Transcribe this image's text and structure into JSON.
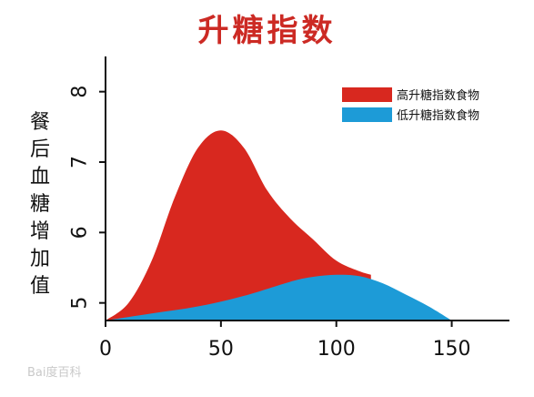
{
  "title": "升糖指数",
  "watermark": "Bai度百科",
  "chart_data": {
    "type": "area",
    "title": "升糖指数",
    "xlabel": "",
    "ylabel": "餐后血糖增加值",
    "xlim": [
      0,
      175
    ],
    "ylim": [
      4.75,
      8.5
    ],
    "x_ticks": [
      0,
      50,
      100,
      150
    ],
    "y_ticks": [
      5,
      6,
      7,
      8
    ],
    "grid": false,
    "legend_position": "top-right",
    "series": [
      {
        "name": "高升糖指数食物",
        "color": "#d8281f",
        "x": [
          0,
          10,
          20,
          30,
          40,
          50,
          60,
          70,
          80,
          90,
          100,
          110,
          115
        ],
        "y": [
          4.75,
          5.0,
          5.6,
          6.5,
          7.2,
          7.45,
          7.2,
          6.6,
          6.2,
          5.9,
          5.6,
          5.45,
          5.4
        ]
      },
      {
        "name": "低升糖指数食物",
        "color": "#1d9bd7",
        "x": [
          0,
          20,
          40,
          60,
          80,
          90,
          100,
          110,
          120,
          130,
          140,
          150
        ],
        "y": [
          4.75,
          4.85,
          4.95,
          5.1,
          5.3,
          5.37,
          5.4,
          5.38,
          5.28,
          5.12,
          4.95,
          4.75
        ]
      }
    ]
  }
}
